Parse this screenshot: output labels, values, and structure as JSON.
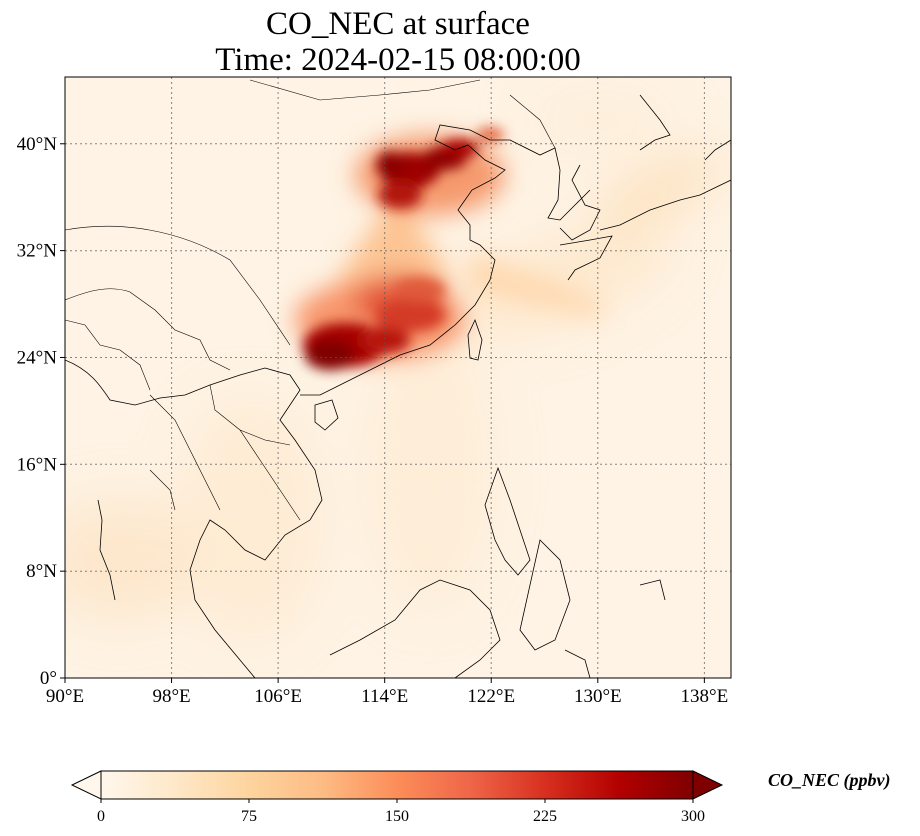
{
  "title": {
    "line1": "CO_NEC at surface",
    "line2": "Time: 2024-02-15 08:00:00"
  },
  "map": {
    "projection": "PlateCarree",
    "lon_range": [
      90,
      140
    ],
    "lat_range": [
      0,
      45
    ],
    "lon_ticks": [
      {
        "value": 90,
        "label": "90°E"
      },
      {
        "value": 98,
        "label": "98°E"
      },
      {
        "value": 106,
        "label": "106°E"
      },
      {
        "value": 114,
        "label": "114°E"
      },
      {
        "value": 122,
        "label": "122°E"
      },
      {
        "value": 130,
        "label": "130°E"
      },
      {
        "value": 138,
        "label": "138°E"
      }
    ],
    "lat_ticks": [
      {
        "value": 0,
        "label": "0°"
      },
      {
        "value": 8,
        "label": "8°N"
      },
      {
        "value": 16,
        "label": "16°N"
      },
      {
        "value": 24,
        "label": "24°N"
      },
      {
        "value": 32,
        "label": "32°N"
      },
      {
        "value": 40,
        "label": "40°N"
      }
    ],
    "gridlines": true,
    "colormap": "OrRd"
  },
  "colorbar": {
    "label": "CO_NEC (ppbv)",
    "min": 0,
    "max": 300,
    "extend": "both",
    "ticks": [
      {
        "value": 0,
        "label": "0"
      },
      {
        "value": 75,
        "label": "75"
      },
      {
        "value": 150,
        "label": "150"
      },
      {
        "value": 225,
        "label": "225"
      },
      {
        "value": 300,
        "label": "300"
      }
    ],
    "colors": [
      "#fff7ec",
      "#fee8c8",
      "#fdd49e",
      "#fdbb84",
      "#fc8d59",
      "#ef6548",
      "#d7301f",
      "#b30000",
      "#7f0000"
    ]
  }
}
